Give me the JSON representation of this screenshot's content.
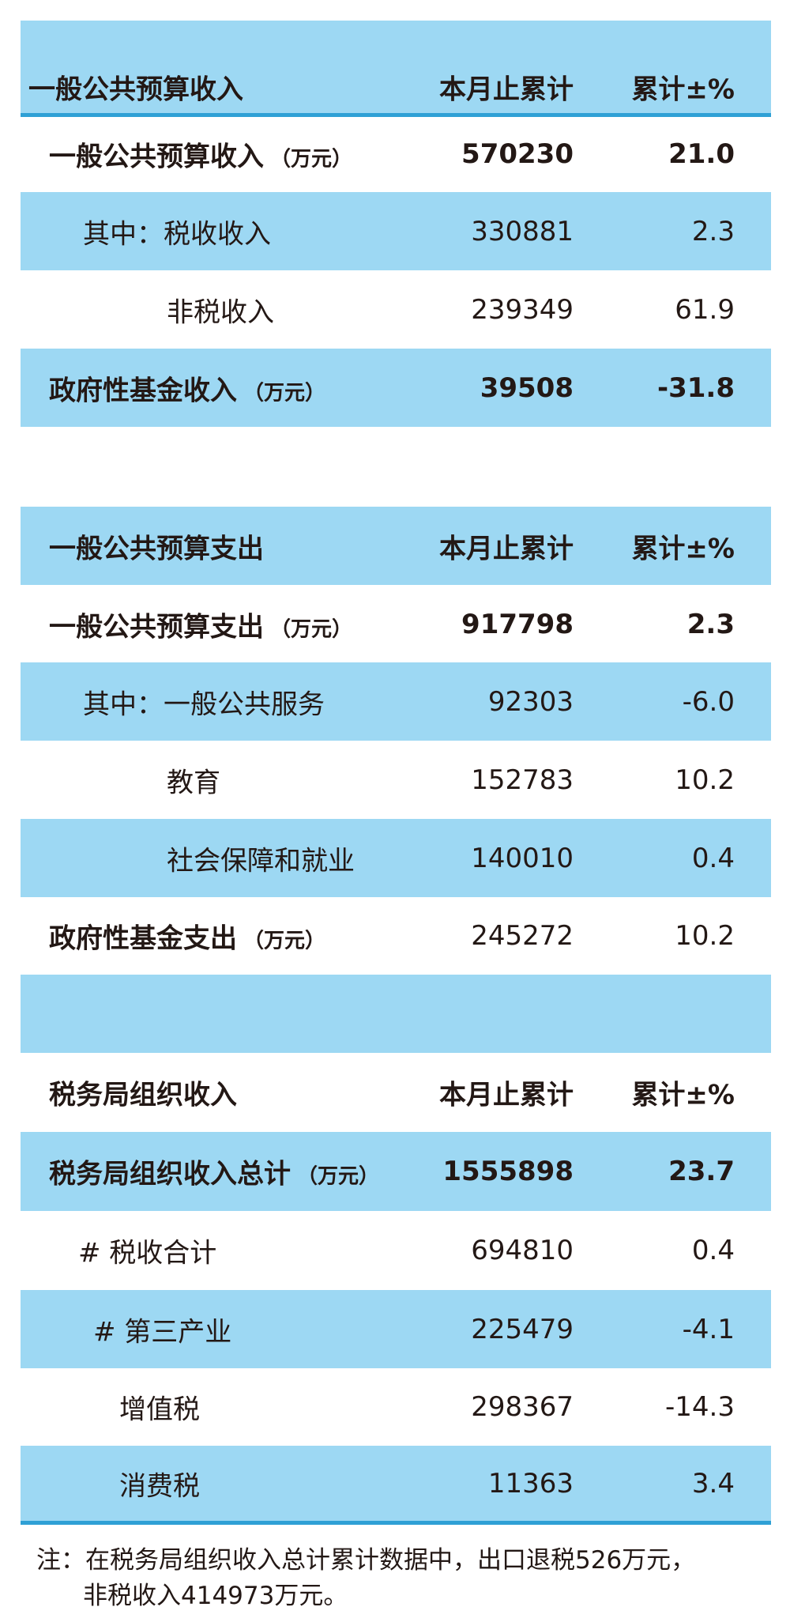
{
  "colors": {
    "row_blue": "#9dd8f3",
    "rule_blue": "#2fa0d5",
    "text": "#231815"
  },
  "unit": "（万元）",
  "revenue": {
    "header": {
      "label": "一般公共预算收入",
      "col1": "本月止累计",
      "col2": "累计±%"
    },
    "rows": [
      {
        "label": "一般公共预算收入",
        "value": "570230",
        "pct": "21.0"
      },
      {
        "label": "其中：税收收入",
        "value": "330881",
        "pct": "2.3"
      },
      {
        "label": "非税收入",
        "value": "239349",
        "pct": "61.9"
      },
      {
        "label": "政府性基金收入",
        "value": "39508",
        "pct": "-31.8"
      }
    ]
  },
  "expenditure": {
    "header": {
      "label": "一般公共预算支出",
      "col1": "本月止累计",
      "col2": "累计±%"
    },
    "rows": [
      {
        "label": "一般公共预算支出",
        "value": "917798",
        "pct": "2.3"
      },
      {
        "label": "其中：一般公共服务",
        "value": "92303",
        "pct": "-6.0"
      },
      {
        "label": "教育",
        "value": "152783",
        "pct": "10.2"
      },
      {
        "label": "社会保障和就业",
        "value": "140010",
        "pct": "0.4"
      },
      {
        "label": "政府性基金支出",
        "value": "245272",
        "pct": "10.2"
      }
    ]
  },
  "tax_bureau": {
    "header": {
      "label": "税务局组织收入",
      "col1": "本月止累计",
      "col2": "累计±%"
    },
    "rows": [
      {
        "label": "税务局组织收入总计",
        "value": "1555898",
        "pct": "23.7"
      },
      {
        "label": "# 税收合计",
        "value": "694810",
        "pct": "0.4"
      },
      {
        "label": "# 第三产业",
        "value": "225479",
        "pct": "-4.1"
      },
      {
        "label": "增值税",
        "value": "298367",
        "pct": "-14.3"
      },
      {
        "label": "消费税",
        "value": "11363",
        "pct": "3.4"
      }
    ]
  },
  "note": {
    "line1": "注：在税务局组织收入总计累计数据中，出口退税526万元，",
    "line2": "非税收入414973万元。"
  }
}
